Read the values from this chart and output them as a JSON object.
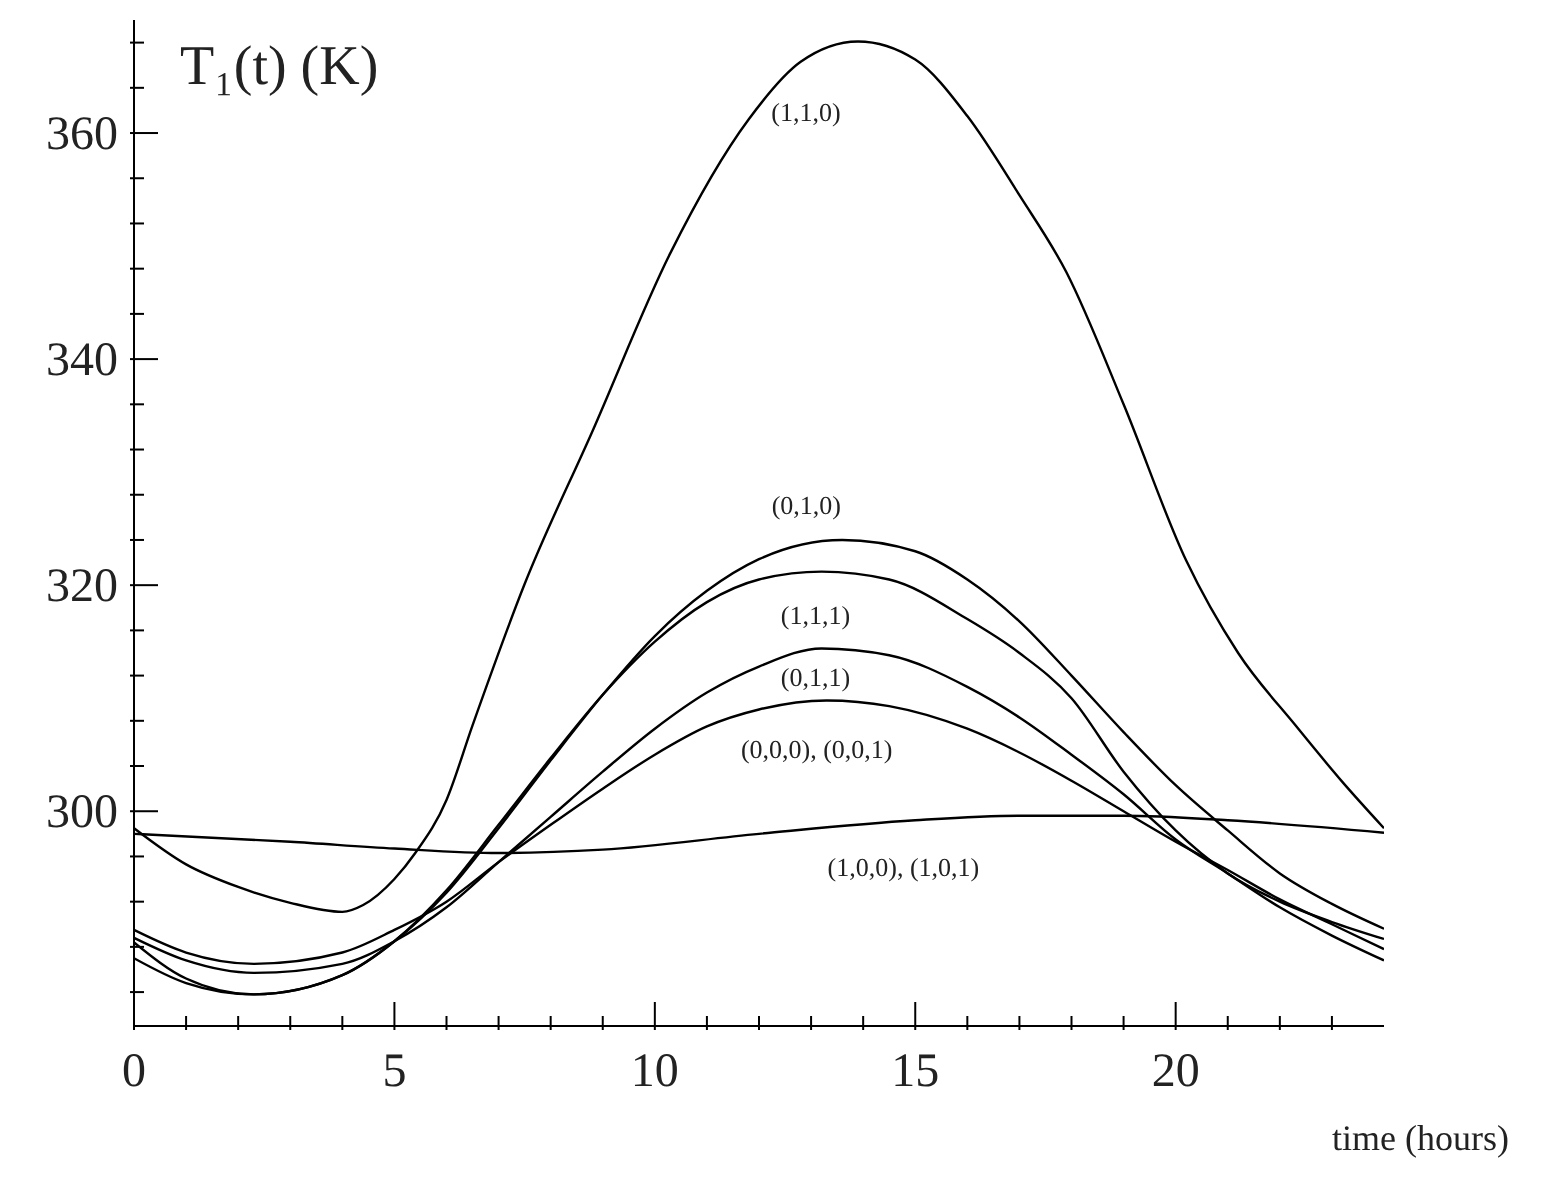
{
  "chart_data": {
    "type": "line",
    "xlabel": "time (hours)",
    "ylabel": "T₁(t)  (K)",
    "xlim": [
      0,
      24
    ],
    "ylim": [
      281,
      370
    ],
    "xticks": [
      0,
      {
        "value": 1,
        "label": null
      },
      {
        "value": 2,
        "label": null
      },
      {
        "value": 3,
        "label": null
      },
      {
        "value": 4,
        "label": null
      },
      5,
      {
        "value": 6,
        "label": null
      },
      {
        "value": 7,
        "label": null
      },
      {
        "value": 8,
        "label": null
      },
      {
        "value": 9,
        "label": null
      },
      10,
      {
        "value": 11,
        "label": null
      },
      {
        "value": 12,
        "label": null
      },
      {
        "value": 13,
        "label": null
      },
      {
        "value": 14,
        "label": null
      },
      15,
      {
        "value": 16,
        "label": null
      },
      {
        "value": 17,
        "label": null
      },
      {
        "value": 18,
        "label": null
      },
      {
        "value": 19,
        "label": null
      },
      20,
      {
        "value": 21,
        "label": null
      },
      {
        "value": 22,
        "label": null
      },
      {
        "value": 23,
        "label": null
      }
    ],
    "yticks": [
      {
        "value": 284,
        "label": null
      },
      {
        "value": 288,
        "label": null
      },
      {
        "value": 292,
        "label": null
      },
      {
        "value": 296,
        "label": null
      },
      300,
      {
        "value": 304,
        "label": null
      },
      {
        "value": 308,
        "label": null
      },
      {
        "value": 312,
        "label": null
      },
      {
        "value": 316,
        "label": null
      },
      320,
      {
        "value": 324,
        "label": null
      },
      {
        "value": 328,
        "label": null
      },
      {
        "value": 332,
        "label": null
      },
      {
        "value": 336,
        "label": null
      },
      340,
      {
        "value": 344,
        "label": null
      },
      {
        "value": 348,
        "label": null
      },
      {
        "value": 352,
        "label": null
      },
      {
        "value": 356,
        "label": null
      },
      360,
      {
        "value": 364,
        "label": null
      },
      {
        "value": 368,
        "label": null
      }
    ],
    "series": [
      {
        "name": "(1,1,0)",
        "color": "#000000",
        "x": [
          0,
          1,
          2,
          3,
          4,
          4.4,
          5,
          5.4,
          6,
          6.5,
          7.5,
          8.8,
          10.3,
          11.8,
          12.8,
          13.9,
          15,
          16,
          17,
          17.9,
          19,
          20.2,
          21.2,
          22.3,
          23.2,
          24
        ],
        "values": [
          298.5,
          295.3,
          293.3,
          291.9,
          291.1,
          291.7,
          294,
          296.3,
          301,
          307.6,
          320.1,
          333.6,
          349.4,
          361.2,
          366.3,
          368.1,
          366.5,
          361.5,
          354.5,
          347.7,
          336,
          322.2,
          314,
          307.6,
          302.6,
          298.5
        ]
      },
      {
        "name": "(1,0,0), (1,0,1)",
        "color": "#000000",
        "x": [
          0,
          3,
          5,
          7,
          9,
          12,
          15,
          17,
          19,
          21,
          24
        ],
        "values": [
          298,
          297.3,
          296.7,
          296.3,
          296.6,
          298,
          299.2,
          299.6,
          299.6,
          299.2,
          298.1
        ]
      },
      {
        "name": "(0,1,0)",
        "color": "#000000",
        "x": [
          0,
          1,
          2.3,
          4,
          5,
          6,
          7,
          8,
          9,
          10,
          11,
          12,
          13.6,
          15,
          16,
          17,
          18,
          19,
          20,
          21,
          22,
          23,
          24
        ],
        "values": [
          288.4,
          285.2,
          283.8,
          285.5,
          288.5,
          292.8,
          298.5,
          304.5,
          310.3,
          315.5,
          319.5,
          322.3,
          324,
          323,
          320.5,
          316.8,
          312,
          307,
          302.3,
          298.3,
          294.5,
          291.8,
          289.6
        ]
      },
      {
        "name": "(1,1,1)",
        "color": "#000000",
        "x": [
          0,
          1,
          2.3,
          4,
          5,
          6,
          7,
          8,
          9,
          10,
          11,
          12,
          13.2,
          14.5,
          16,
          17,
          18,
          19,
          20,
          21,
          22,
          23,
          24
        ],
        "values": [
          287,
          284.8,
          283.8,
          285.5,
          288.5,
          293,
          298.8,
          304.7,
          310.3,
          315,
          318.5,
          320.5,
          321.2,
          320.5,
          317,
          314,
          310,
          303.5,
          298.3,
          294.5,
          292,
          290.2,
          288.7
        ]
      },
      {
        "name": "(0,1,1)",
        "color": "#000000",
        "x": [
          0,
          1,
          2.3,
          4,
          5,
          6,
          7,
          8,
          9,
          10,
          11,
          12,
          13.2,
          14.5,
          16,
          17,
          18,
          19,
          20,
          21,
          22,
          23,
          24
        ],
        "values": [
          288.8,
          286.8,
          285.7,
          286.5,
          288.5,
          291.5,
          295.5,
          299.5,
          303.5,
          307.3,
          310.5,
          312.8,
          314.4,
          313.8,
          311,
          308.3,
          305,
          301.5,
          297.5,
          294.5,
          291.5,
          289,
          286.8
        ]
      },
      {
        "name": "(0,0,0), (0,0,1)",
        "color": "#000000",
        "x": [
          0,
          1,
          2.3,
          4,
          5,
          6,
          7,
          8,
          9,
          10,
          11,
          12,
          13.3,
          14.5,
          16,
          17,
          18,
          19,
          20,
          21,
          22,
          23,
          24
        ],
        "values": [
          289.5,
          287.5,
          286.5,
          287.5,
          289.5,
          292,
          295.5,
          298.8,
          302,
          305,
          307.5,
          309,
          309.8,
          309.3,
          307.3,
          305.2,
          302.7,
          300,
          297.3,
          294.8,
          292.2,
          290,
          287.8
        ]
      }
    ]
  }
}
